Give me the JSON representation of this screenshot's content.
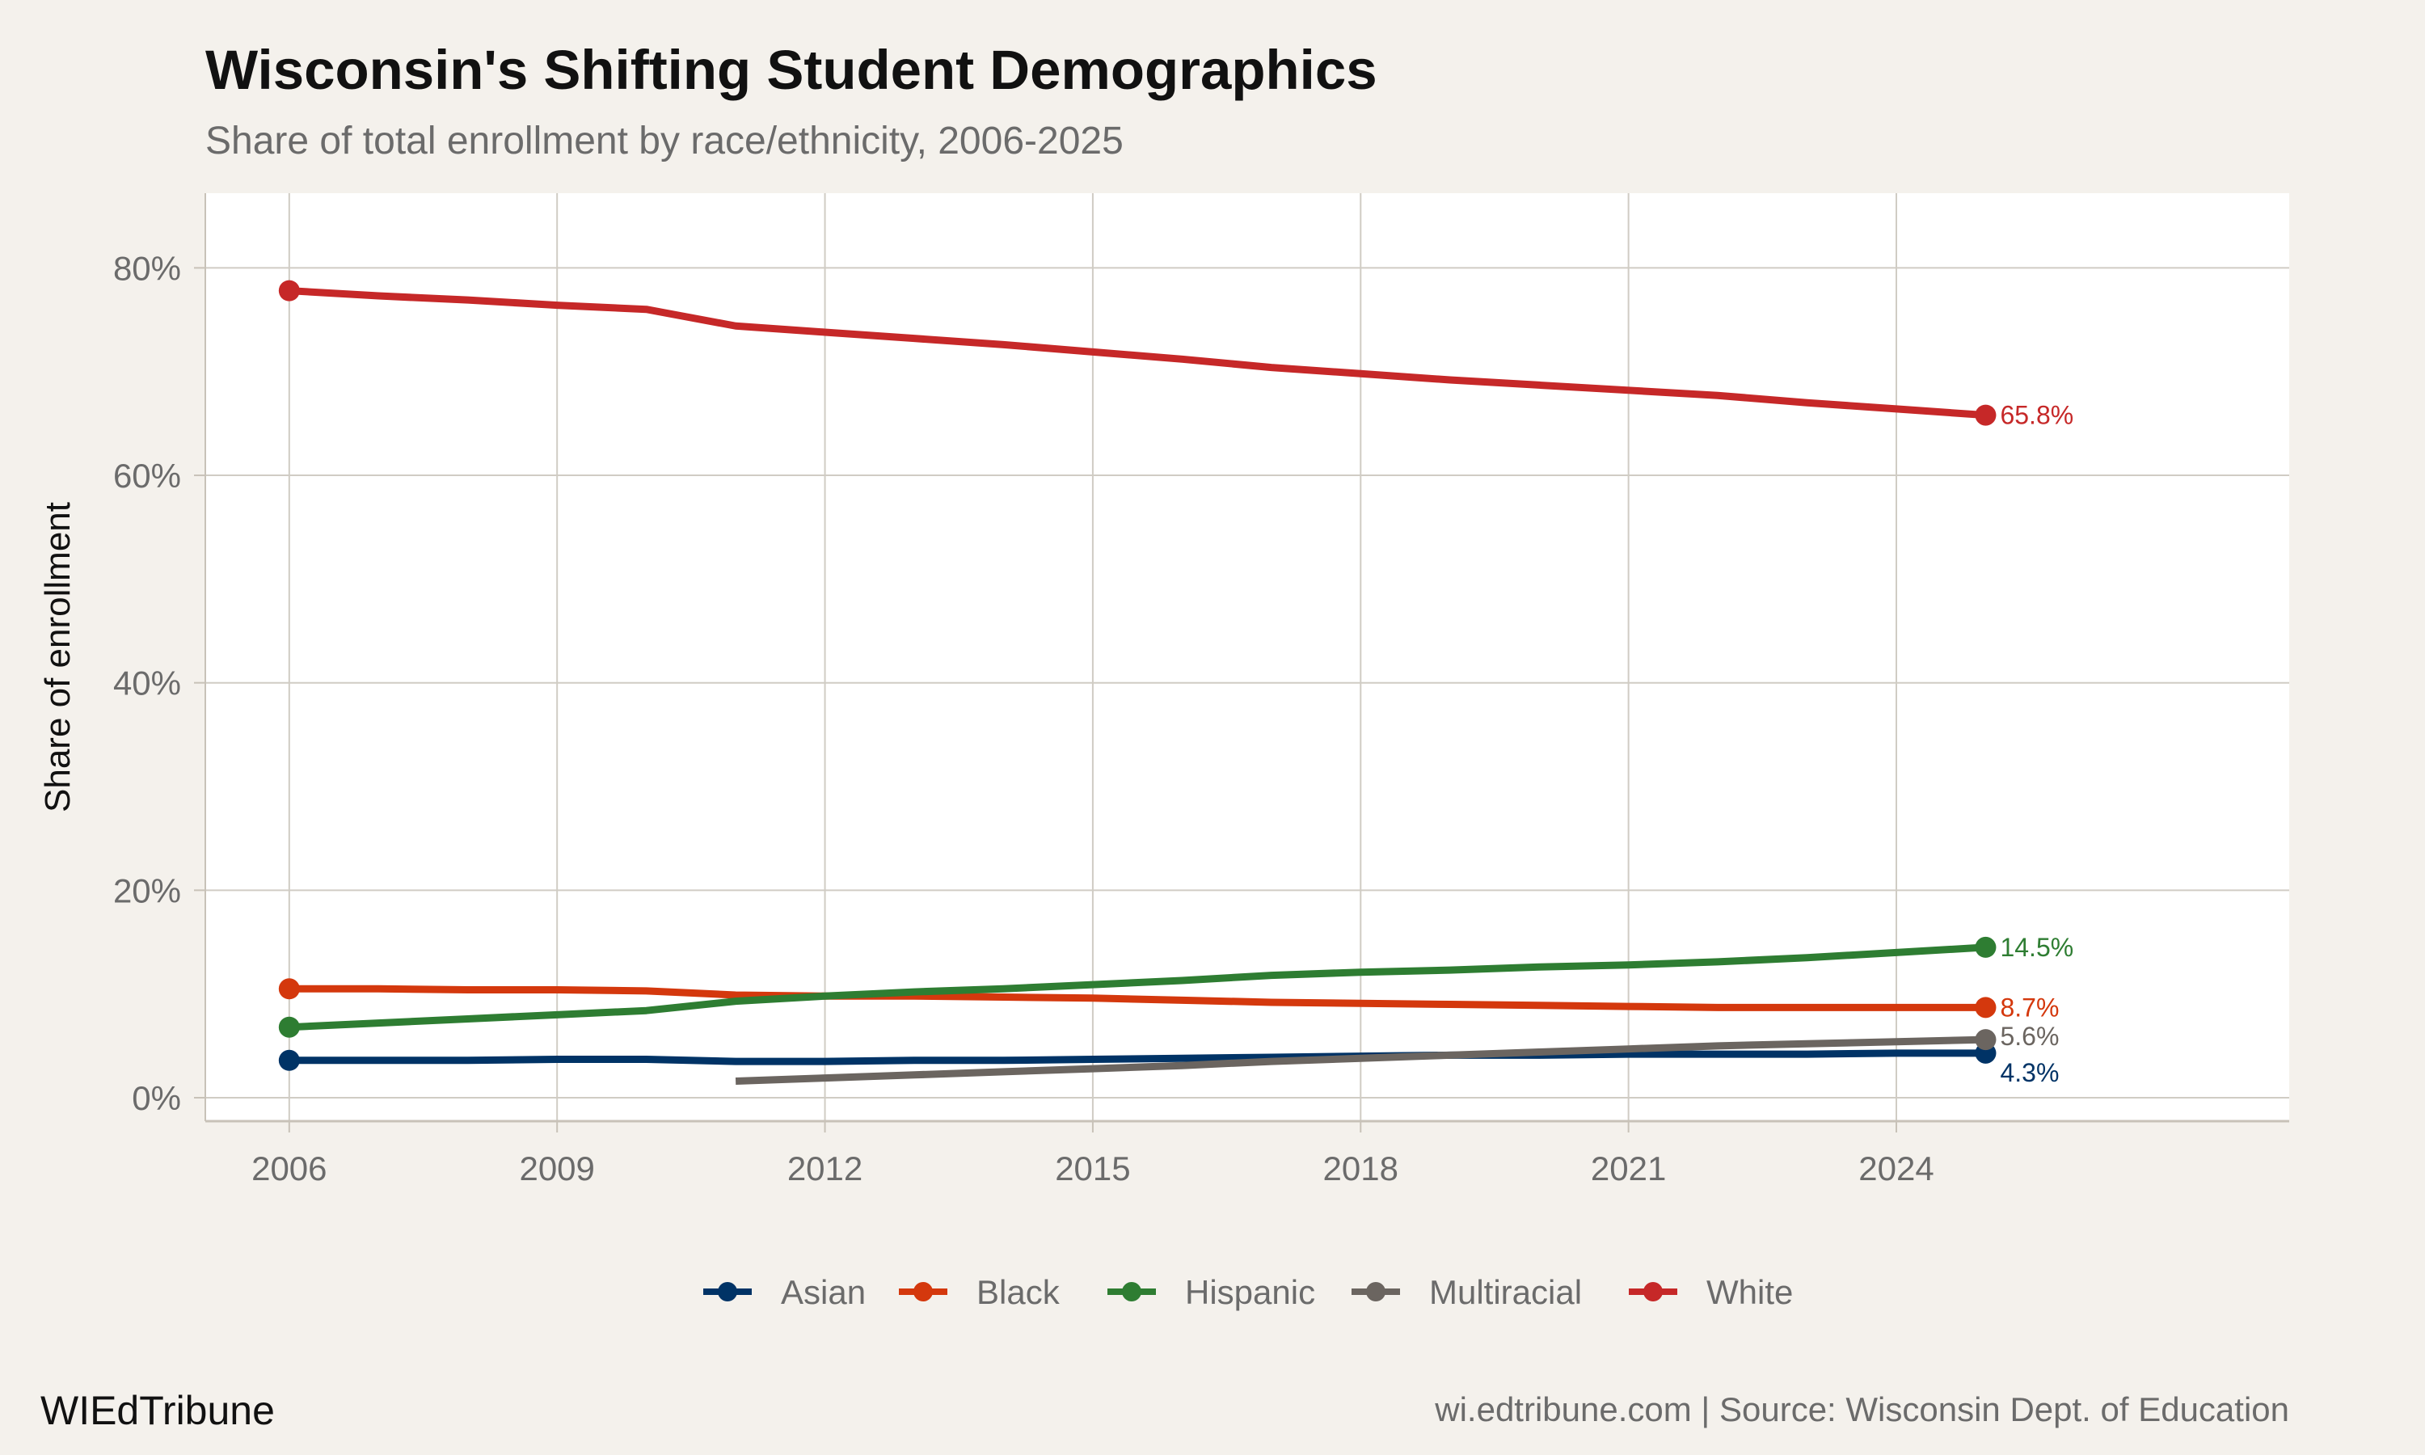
{
  "chart_data": {
    "type": "line",
    "title": "Wisconsin's Shifting Student Demographics",
    "subtitle": "Share of total enrollment by race/ethnicity, 2006-2025",
    "xlabel": "",
    "ylabel": "Share of enrollment",
    "xlim": [
      2005.06,
      2028.4
    ],
    "ylim": [
      -2.26,
      87.2
    ],
    "x_ticks": [
      2006,
      2009,
      2012,
      2015,
      2018,
      2021,
      2024
    ],
    "y_ticks": [
      0,
      20,
      40,
      60,
      80
    ],
    "y_tick_labels": [
      "0%",
      "20%",
      "40%",
      "60%",
      "80%"
    ],
    "grid": true,
    "legend_position": "bottom",
    "series": [
      {
        "name": "Asian",
        "color": "#003366",
        "x": [
          2006,
          2007,
          2008,
          2009,
          2010,
          2011,
          2012,
          2013,
          2014,
          2015,
          2016,
          2017,
          2018,
          2019,
          2020,
          2021,
          2022,
          2023,
          2024,
          2025
        ],
        "values": [
          3.6,
          3.6,
          3.6,
          3.7,
          3.7,
          3.5,
          3.5,
          3.6,
          3.6,
          3.7,
          3.8,
          3.9,
          4.0,
          4.1,
          4.1,
          4.2,
          4.2,
          4.2,
          4.3,
          4.3
        ],
        "end_label": "4.3%"
      },
      {
        "name": "Black",
        "color": "#d4380d",
        "x": [
          2006,
          2007,
          2008,
          2009,
          2010,
          2011,
          2012,
          2013,
          2014,
          2015,
          2016,
          2017,
          2018,
          2019,
          2020,
          2021,
          2022,
          2023,
          2024,
          2025
        ],
        "values": [
          10.5,
          10.5,
          10.4,
          10.4,
          10.3,
          9.9,
          9.8,
          9.8,
          9.7,
          9.6,
          9.4,
          9.2,
          9.1,
          9.0,
          8.9,
          8.8,
          8.7,
          8.7,
          8.7,
          8.7
        ],
        "end_label": "8.7%"
      },
      {
        "name": "Hispanic",
        "color": "#2e7d32",
        "x": [
          2006,
          2007,
          2008,
          2009,
          2010,
          2011,
          2012,
          2013,
          2014,
          2015,
          2016,
          2017,
          2018,
          2019,
          2020,
          2021,
          2022,
          2023,
          2024,
          2025
        ],
        "values": [
          6.8,
          7.2,
          7.6,
          8.0,
          8.4,
          9.3,
          9.8,
          10.2,
          10.5,
          10.9,
          11.3,
          11.8,
          12.1,
          12.3,
          12.6,
          12.8,
          13.1,
          13.5,
          14.0,
          14.5
        ],
        "end_label": "14.5%"
      },
      {
        "name": "Multiracial",
        "color": "#6b6560",
        "x": [
          2011,
          2012,
          2013,
          2014,
          2015,
          2016,
          2017,
          2018,
          2019,
          2020,
          2021,
          2022,
          2023,
          2024,
          2025
        ],
        "values": [
          1.6,
          1.9,
          2.2,
          2.5,
          2.8,
          3.1,
          3.5,
          3.8,
          4.1,
          4.4,
          4.7,
          5.0,
          5.2,
          5.4,
          5.6
        ],
        "end_label": "5.6%"
      },
      {
        "name": "White",
        "color": "#c62828",
        "x": [
          2006,
          2007,
          2008,
          2009,
          2010,
          2011,
          2012,
          2013,
          2014,
          2015,
          2016,
          2017,
          2018,
          2019,
          2020,
          2021,
          2022,
          2023,
          2024,
          2025
        ],
        "values": [
          77.8,
          77.3,
          76.9,
          76.4,
          76.0,
          74.4,
          73.8,
          73.2,
          72.6,
          71.9,
          71.2,
          70.4,
          69.8,
          69.2,
          68.7,
          68.2,
          67.7,
          67.0,
          66.4,
          65.8
        ],
        "end_label": "65.8%"
      }
    ]
  },
  "footer": {
    "brand": "WIEdTribune",
    "source": "wi.edtribune.com | Source: Wisconsin Dept. of Education"
  }
}
